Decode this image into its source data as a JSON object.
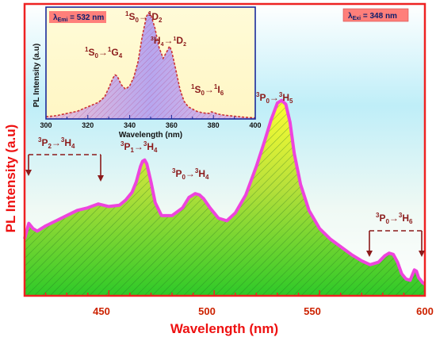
{
  "chart_data": [
    {
      "type": "area",
      "xlabel": "Wavelength (nm)",
      "ylabel": "PL Intensity (a.u)",
      "xlim": [
        410,
        600
      ],
      "xticks": [
        "450",
        "500",
        "550",
        "600"
      ],
      "yticks_shown": false,
      "excitation_label": {
        "prefix": "λ",
        "sub": "Exi",
        "text": " = 348 nm"
      },
      "series": [
        {
          "x": [
            410,
            411,
            412,
            414,
            416,
            420,
            425,
            430,
            435,
            440,
            445,
            450,
            455,
            458,
            461,
            463,
            465,
            466,
            467,
            468,
            470,
            472,
            475,
            480,
            485,
            488,
            491,
            493,
            495,
            498,
            502,
            506,
            510,
            515,
            520,
            524,
            527,
            530,
            532,
            534,
            536,
            538,
            541,
            545,
            550,
            555,
            560,
            565,
            570,
            574,
            578,
            581,
            583,
            585,
            587,
            589,
            591,
            593,
            594,
            595,
            596,
            597,
            598,
            599,
            600
          ],
          "values": [
            0.22,
            0.25,
            0.28,
            0.26,
            0.25,
            0.27,
            0.29,
            0.31,
            0.33,
            0.34,
            0.355,
            0.345,
            0.35,
            0.37,
            0.4,
            0.44,
            0.5,
            0.52,
            0.525,
            0.51,
            0.44,
            0.36,
            0.31,
            0.31,
            0.34,
            0.38,
            0.395,
            0.39,
            0.375,
            0.34,
            0.3,
            0.29,
            0.32,
            0.39,
            0.5,
            0.6,
            0.68,
            0.745,
            0.755,
            0.74,
            0.67,
            0.55,
            0.43,
            0.33,
            0.26,
            0.22,
            0.19,
            0.16,
            0.135,
            0.12,
            0.13,
            0.155,
            0.165,
            0.16,
            0.13,
            0.085,
            0.065,
            0.06,
            0.08,
            0.1,
            0.095,
            0.07,
            0.06,
            0.05,
            0.045
          ]
        }
      ],
      "annotations": [
        {
          "base": "P",
          "pre": "3",
          "sub": "2",
          "arrow": "→",
          "base2": "H",
          "pre2": "3",
          "sub2": "4"
        },
        {
          "base": "P",
          "pre": "3",
          "sub": "1",
          "arrow": "→",
          "base2": "H",
          "pre2": "3",
          "sub2": "4"
        },
        {
          "base": "P",
          "pre": "3",
          "sub": "0",
          "arrow": "→",
          "base2": "H",
          "pre2": "3",
          "sub2": "4"
        },
        {
          "base": "P",
          "pre": "3",
          "sub": "0",
          "arrow": "→",
          "base2": "H",
          "pre2": "3",
          "sub2": "5"
        },
        {
          "base": "P",
          "pre": "3",
          "sub": "0",
          "arrow": "→",
          "base2": "H",
          "pre2": "3",
          "sub2": "6"
        }
      ]
    },
    {
      "type": "area",
      "xlabel": "Wavelength (nm)",
      "ylabel": "PL Intensity (a.u)",
      "xlim": [
        300,
        400
      ],
      "xticks": [
        "300",
        "320",
        "340",
        "360",
        "380",
        "400"
      ],
      "emission_label": {
        "prefix": "λ",
        "sub": "Emi",
        "text": " = 532 nm"
      },
      "series": [
        {
          "x": [
            300,
            305,
            310,
            315,
            320,
            325,
            328,
            330,
            332,
            333,
            334,
            336,
            338,
            340,
            342,
            344,
            346,
            348,
            349,
            350,
            352,
            354,
            356,
            358,
            359,
            360,
            362,
            364,
            366,
            368,
            370,
            372,
            375,
            378,
            379,
            380,
            382,
            385,
            390,
            395,
            400
          ],
          "values": [
            0.02,
            0.03,
            0.05,
            0.07,
            0.11,
            0.15,
            0.2,
            0.28,
            0.37,
            0.4,
            0.39,
            0.31,
            0.27,
            0.3,
            0.38,
            0.52,
            0.75,
            0.93,
            0.96,
            0.95,
            0.83,
            0.65,
            0.55,
            0.62,
            0.66,
            0.62,
            0.45,
            0.27,
            0.16,
            0.11,
            0.09,
            0.07,
            0.055,
            0.05,
            0.065,
            0.06,
            0.045,
            0.035,
            0.025,
            0.015,
            0.01
          ]
        }
      ],
      "annotations": [
        {
          "base": "S",
          "pre": "1",
          "sub": "0",
          "arrow": "→",
          "base2": "G",
          "pre2": "1",
          "sub2": "4"
        },
        {
          "base": "S",
          "pre": "1",
          "sub": "0",
          "arrow": "→",
          "base2": "D",
          "pre2": "1",
          "sub2": "2"
        },
        {
          "base": "H",
          "pre": "3",
          "sub": "4",
          "arrow": "→",
          "base2": "D",
          "pre2": "1",
          "sub2": "2"
        },
        {
          "base": "S",
          "pre": "1",
          "sub": "0",
          "arrow": "→",
          "base2": "I",
          "pre2": "1",
          "sub2": "6"
        }
      ]
    }
  ]
}
